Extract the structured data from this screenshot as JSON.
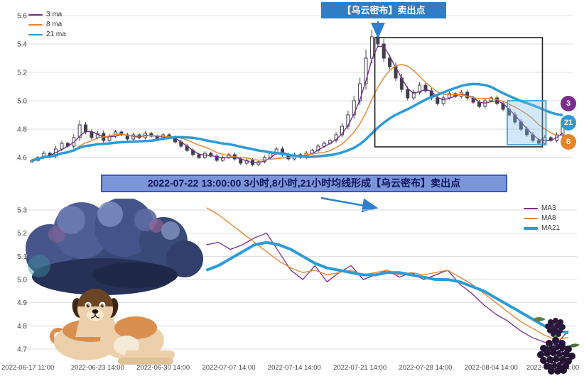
{
  "banner": {
    "text": "2022-07-22 13:00:00 3小时,8小时,21小时均线形成【乌云密布】卖出点"
  },
  "colors": {
    "ma3": "#7b2d8e",
    "ma8": "#e8832a",
    "ma21": "#2d9bd8",
    "candle": "#3f3f4e",
    "grid": "#dcdcdc",
    "axis_text": "#444444",
    "arrow": "#2e7fd0",
    "callout_bg": "#2f7cc7",
    "callout_fg": "#ffffff",
    "banner_bg": "#7b95da",
    "banner_fg": "#0e1560",
    "banner_border": "#3d57b8",
    "black_box": "#222222",
    "blue_box_stroke": "#2d9bd8",
    "blue_box_fill": "rgba(125,190,235,0.35)"
  },
  "chart_data": [
    {
      "type": "candlestick",
      "title": "",
      "ylim": [
        4.5,
        5.65
      ],
      "yticks": [
        5.6,
        5.4,
        5.2,
        5.0,
        4.8,
        4.6
      ],
      "grid": true,
      "legend_position": "top-left",
      "legend": [
        {
          "label": "3 ma",
          "color": "#7b2d8e",
          "period": 3
        },
        {
          "label": "8 ma",
          "color": "#e8832a",
          "period": 8
        },
        {
          "label": "21 ma",
          "color": "#2d9bd8",
          "period": 21
        }
      ],
      "close": [
        4.58,
        4.6,
        4.63,
        4.61,
        4.66,
        4.7,
        4.68,
        4.74,
        4.83,
        4.78,
        4.74,
        4.77,
        4.72,
        4.75,
        4.78,
        4.76,
        4.73,
        4.76,
        4.74,
        4.77,
        4.75,
        4.73,
        4.76,
        4.74,
        4.71,
        4.68,
        4.65,
        4.62,
        4.6,
        4.63,
        4.61,
        4.58,
        4.6,
        4.62,
        4.59,
        4.56,
        4.58,
        4.55,
        4.57,
        4.6,
        4.63,
        4.66,
        4.62,
        4.59,
        4.62,
        4.6,
        4.63,
        4.65,
        4.68,
        4.7,
        4.72,
        4.76,
        4.82,
        4.9,
        5.0,
        5.12,
        5.3,
        5.45,
        5.4,
        5.3,
        5.24,
        5.16,
        5.08,
        5.02,
        5.06,
        5.11,
        5.07,
        5.02,
        4.98,
        5.02,
        5.05,
        5.03,
        5.06,
        5.02,
        4.99,
        4.96,
        5.0,
        5.02,
        4.98,
        4.94,
        4.9,
        4.85,
        4.8,
        4.76,
        4.72,
        4.7,
        4.74,
        4.72,
        4.76,
        4.84
      ],
      "ma_periods": [
        3,
        8,
        21
      ],
      "annotations": {
        "callout": {
          "text": "【乌云密布】卖出点"
        },
        "black_box": {
          "i0": 57.5,
          "i1": 85.6,
          "v0": 4.675,
          "v1": 5.445
        },
        "blue_box": {
          "i0": 79.7,
          "i1": 86.2,
          "v0": 4.69,
          "v1": 5.0
        },
        "badges": [
          {
            "label": "3",
            "color": "#7b2d8e"
          },
          {
            "label": "21",
            "color": "#2d9bd8"
          },
          {
            "label": "8",
            "color": "#e8832a"
          }
        ]
      }
    },
    {
      "type": "line",
      "title": "",
      "ylim": [
        4.65,
        5.35
      ],
      "yticks": [
        5.3,
        5.2,
        5.1,
        5.0,
        4.9,
        4.8,
        4.7
      ],
      "grid": true,
      "legend_position": "top-right",
      "x_start_frac": 0.325,
      "x_tick_labels": [
        "2022-06-17 11:00",
        "2022-06-23 14:00",
        "2022-06-30 14:00",
        "2022-07-07 14:00",
        "2022-07-14 14:00",
        "2022-07-21 14:00",
        "2022-07-28 14:00",
        "2022-08-04 14:00",
        "2022-08-11 14:00"
      ],
      "legend": [
        {
          "label": "MA3",
          "color": "#7b2d8e"
        },
        {
          "label": "MA8",
          "color": "#e8832a"
        },
        {
          "label": "MA21",
          "color": "#2d9bd8"
        }
      ],
      "series": [
        {
          "name": "MA3",
          "color": "#7b2d8e",
          "width": 1.3,
          "values": [
            5.15,
            5.16,
            5.13,
            5.15,
            5.18,
            5.2,
            5.12,
            5.04,
            5.0,
            5.06,
            4.99,
            5.03,
            5.06,
            5.0,
            5.02,
            5.04,
            5.01,
            5.03,
            5.0,
            5.02,
            5.04,
            4.98,
            4.94,
            4.89,
            4.85,
            4.82,
            4.78,
            4.75,
            4.73,
            4.72,
            4.78
          ]
        },
        {
          "name": "MA8",
          "color": "#e8832a",
          "width": 1.3,
          "values": [
            5.31,
            5.28,
            5.24,
            5.2,
            5.16,
            5.12,
            5.08,
            5.05,
            5.03,
            5.04,
            5.02,
            5.03,
            5.04,
            5.02,
            5.03,
            5.04,
            5.02,
            5.03,
            5.02,
            5.03,
            5.04,
            5.01,
            4.98,
            4.94,
            4.9,
            4.86,
            4.82,
            4.79,
            4.76,
            4.74,
            4.75
          ]
        },
        {
          "name": "MA21",
          "color": "#2d9bd8",
          "width": 4,
          "values": [
            5.04,
            5.06,
            5.09,
            5.12,
            5.15,
            5.16,
            5.15,
            5.13,
            5.1,
            5.07,
            5.05,
            5.04,
            5.03,
            5.02,
            5.02,
            5.03,
            5.03,
            5.02,
            5.01,
            5.0,
            5.0,
            4.99,
            4.97,
            4.95,
            4.92,
            4.89,
            4.86,
            4.83,
            4.8,
            4.78,
            4.77
          ]
        }
      ]
    }
  ]
}
